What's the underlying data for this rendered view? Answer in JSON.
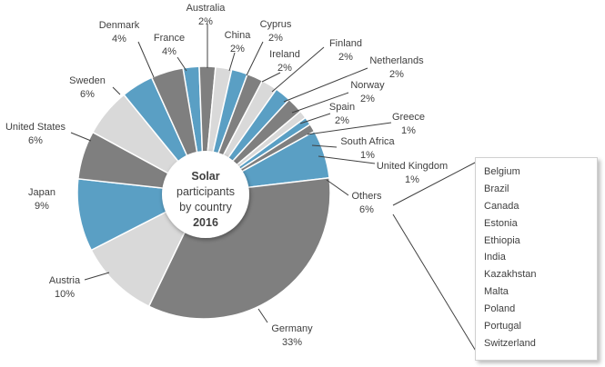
{
  "chart_data": {
    "type": "pie",
    "variant": "donut",
    "center_title": [
      "Solar",
      "participants",
      "by country",
      "2016"
    ],
    "slices": [
      {
        "label": "Australia",
        "value": 2,
        "display": "2%",
        "color": "#5a9fc4"
      },
      {
        "label": "China",
        "value": 2,
        "display": "2%",
        "color": "#7f7f7f"
      },
      {
        "label": "Cyprus",
        "value": 2,
        "display": "2%",
        "color": "#d9d9d9"
      },
      {
        "label": "Ireland",
        "value": 2,
        "display": "2%",
        "color": "#5a9fc4"
      },
      {
        "label": "Finland",
        "value": 2,
        "display": "2%",
        "color": "#7f7f7f"
      },
      {
        "label": "Netherlands",
        "value": 2,
        "display": "2%",
        "color": "#d9d9d9"
      },
      {
        "label": "Norway",
        "value": 2,
        "display": "2%",
        "color": "#5a9fc4"
      },
      {
        "label": "Spain",
        "value": 2,
        "display": "2%",
        "color": "#7f7f7f"
      },
      {
        "label": "Greece",
        "value": 1,
        "display": "1%",
        "color": "#d9d9d9"
      },
      {
        "label": "South Africa",
        "value": 1,
        "display": "1%",
        "color": "#5a9fc4"
      },
      {
        "label": "United Kingdom",
        "value": 1,
        "display": "1%",
        "color": "#7f7f7f"
      },
      {
        "label": "Others",
        "value": 6,
        "display": "6%",
        "color": "#5a9fc4"
      },
      {
        "label": "Germany",
        "value": 33,
        "display": "33%",
        "color": "#7f7f7f"
      },
      {
        "label": "Austria",
        "value": 10,
        "display": "10%",
        "color": "#d9d9d9"
      },
      {
        "label": "Japan",
        "value": 9,
        "display": "9%",
        "color": "#5a9fc4"
      },
      {
        "label": "United States",
        "value": 6,
        "display": "6%",
        "color": "#7f7f7f"
      },
      {
        "label": "Sweden",
        "value": 6,
        "display": "6%",
        "color": "#d9d9d9"
      },
      {
        "label": "Denmark",
        "value": 4,
        "display": "4%",
        "color": "#5a9fc4"
      },
      {
        "label": "France",
        "value": 4,
        "display": "4%",
        "color": "#7f7f7f"
      }
    ],
    "others_list": [
      "Belgium",
      "Brazil",
      "Canada",
      "Estonia",
      "Ethiopia",
      "India",
      "Kazakhstan",
      "Malta",
      "Poland",
      "Portugal",
      "Switzerland"
    ]
  }
}
